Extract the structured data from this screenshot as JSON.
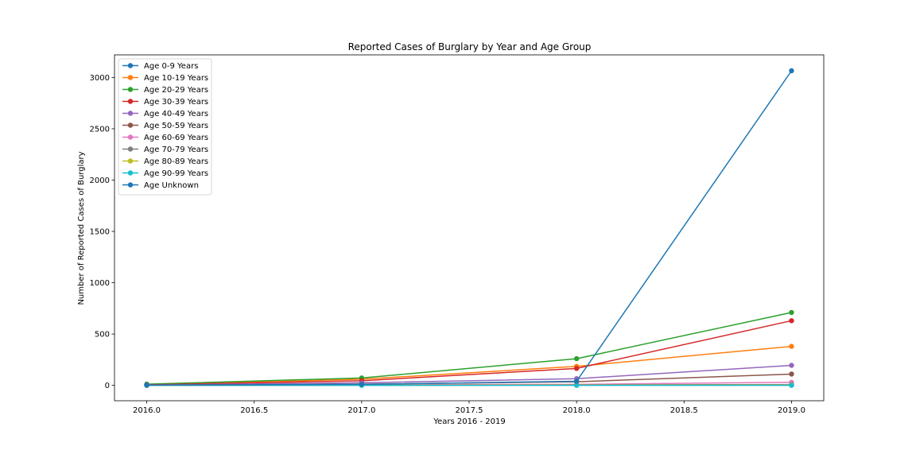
{
  "chart_data": {
    "type": "line",
    "title": "Reported Cases of Burglary by Year and Age Group",
    "xlabel": "Years 2016 - 2019",
    "ylabel": "Number of Reported Cases of Burglary",
    "x": [
      2016,
      2017,
      2018,
      2019
    ],
    "xlim": [
      2015.85,
      2019.15
    ],
    "ylim": [
      -150,
      3220
    ],
    "xticks": [
      2016.0,
      2016.5,
      2017.0,
      2017.5,
      2018.0,
      2018.5,
      2019.0
    ],
    "xtick_labels": [
      "2016.0",
      "2016.5",
      "2017.0",
      "2017.5",
      "2018.0",
      "2018.5",
      "2019.0"
    ],
    "yticks": [
      0,
      500,
      1000,
      1500,
      2000,
      2500,
      3000
    ],
    "ytick_labels": [
      "0",
      "500",
      "1000",
      "1500",
      "2000",
      "2500",
      "3000"
    ],
    "grid": false,
    "legend_position": "upper-left",
    "markers": true,
    "series": [
      {
        "name": "Age 0-9 Years",
        "color": "#1f77b4",
        "values": [
          0,
          2,
          3,
          3
        ]
      },
      {
        "name": "Age 10-19 Years",
        "color": "#ff7f0e",
        "values": [
          8,
          60,
          185,
          380
        ]
      },
      {
        "name": "Age 20-29 Years",
        "color": "#2ca02c",
        "values": [
          12,
          72,
          260,
          710
        ]
      },
      {
        "name": "Age 30-39 Years",
        "color": "#d62728",
        "values": [
          5,
          45,
          165,
          630
        ]
      },
      {
        "name": "Age 40-49 Years",
        "color": "#9467bd",
        "values": [
          3,
          25,
          65,
          195
        ]
      },
      {
        "name": "Age 50-59 Years",
        "color": "#8c564b",
        "values": [
          2,
          12,
          35,
          110
        ]
      },
      {
        "name": "Age 60-69 Years",
        "color": "#e377c2",
        "values": [
          1,
          5,
          10,
          30
        ]
      },
      {
        "name": "Age 70-79 Years",
        "color": "#7f7f7f",
        "values": [
          0,
          2,
          4,
          8
        ]
      },
      {
        "name": "Age 80-89 Years",
        "color": "#bcbd22",
        "values": [
          0,
          1,
          2,
          3
        ]
      },
      {
        "name": "Age 90-99 Years",
        "color": "#17becf",
        "values": [
          0,
          0,
          0,
          0
        ]
      },
      {
        "name": "Age Unknown",
        "color": "#1f77b4",
        "values": [
          2,
          10,
          40,
          3065
        ]
      }
    ]
  }
}
